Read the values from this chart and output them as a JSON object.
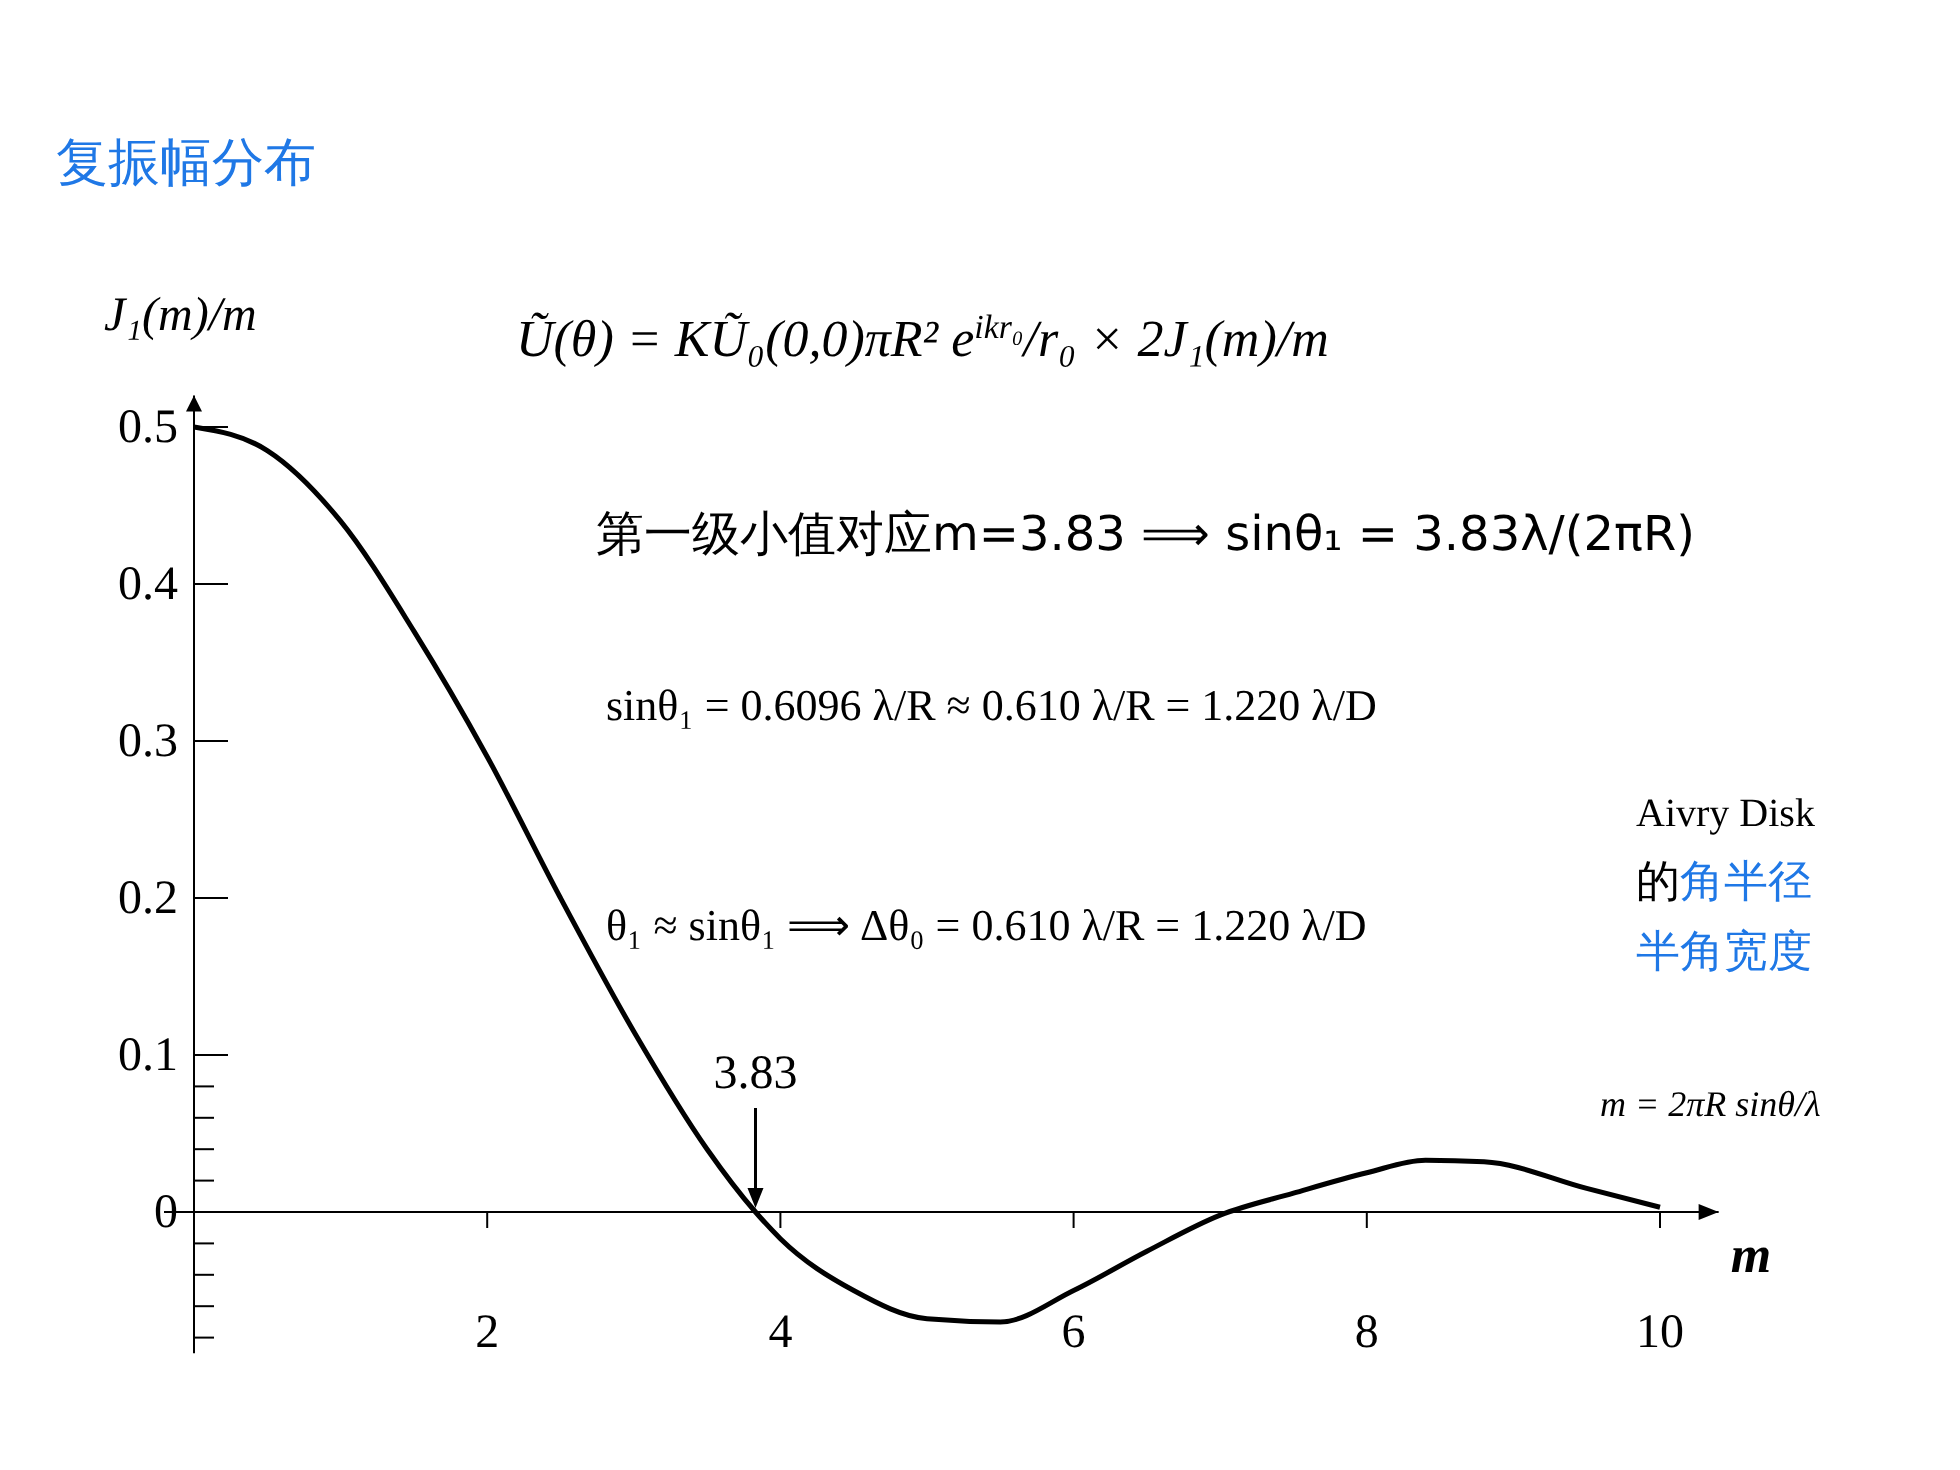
{
  "chart_data": {
    "type": "line",
    "title": "复振幅分布",
    "xlabel": "m",
    "ylabel": "J₁(m)/m",
    "x": [
      0,
      0.5,
      1,
      1.5,
      2,
      2.5,
      3,
      3.5,
      3.83,
      4,
      4.5,
      5,
      5.5,
      6,
      6.5,
      7,
      7.5,
      8,
      8.4,
      8.8,
      9.5,
      10
    ],
    "series": [
      {
        "color": "#000000",
        "values": [
          0.5,
          0.485,
          0.44,
          0.37,
          0.29,
          0.2,
          0.115,
          0.04,
          0,
          -0.017,
          -0.05,
          -0.068,
          -0.07,
          -0.05,
          -0.025,
          -0.002,
          0.012,
          0.025,
          0.033,
          0.032,
          0.015,
          0.003
        ]
      }
    ],
    "xlim": [
      0,
      10.4
    ],
    "xticks": [
      2,
      4,
      6,
      8,
      10
    ],
    "ylim": [
      -0.09,
      0.52
    ],
    "yticks": [
      0,
      0.1,
      0.2,
      0.3,
      0.4,
      0.5,
      {
        "value": 0.08,
        "label": null
      },
      {
        "value": 0.06,
        "label": null
      },
      {
        "value": 0.04,
        "label": null
      },
      {
        "value": 0.02,
        "label": null
      },
      {
        "value": -0.02,
        "label": null
      },
      {
        "value": -0.04,
        "label": null
      },
      {
        "value": -0.06,
        "label": null
      },
      {
        "value": -0.08,
        "label": null
      }
    ],
    "marker": "none",
    "line_style": "solid",
    "annotations": [
      "Ũ(θ) = KŨ₀(0,0)πR² e$^{ikr₀}$/r₀ × 2J₁(m)/m",
      "第一级小值对应m=3.83 ⟹ sinθ₁ = 3.83λ/(2πR)",
      "sinθ₁ = 0.6096 λ/R ≈ 0.610 λ/R = 1.220 λ/D",
      "θ₁ ≈ sinθ₁ ⟹ Δθ₀ = 0.610 λ/R = 1.220 λ/D",
      "Aivry Disk",
      "的",
      "角半径",
      "半角宽度",
      "m = 2πR sinθ/λ",
      {
        "text": "3.83",
        "x": 3.83,
        "y": 0
      }
    ]
  }
}
